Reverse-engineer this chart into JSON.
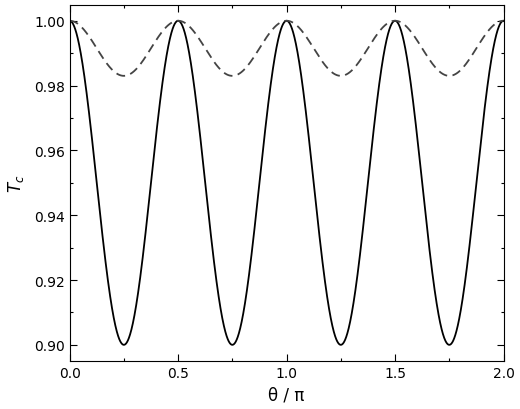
{
  "xlim": [
    0.0,
    2.0
  ],
  "ylim": [
    0.895,
    1.005
  ],
  "xlabel": "θ / π",
  "ylabel": "$T_c$",
  "xticks": [
    0.0,
    0.5,
    1.0,
    1.5,
    2.0
  ],
  "yticks": [
    0.9,
    0.92,
    0.94,
    0.96,
    0.98,
    1.0
  ],
  "solid_color": "#000000",
  "dashed_color": "#444444",
  "solid_linewidth": 1.3,
  "dashed_linewidth": 1.3,
  "solid_min": 0.9,
  "solid_max": 1.0,
  "dashed_min": 0.983,
  "dashed_max": 1.0,
  "n_points": 3000,
  "background_color": "#ffffff",
  "figsize": [
    5.2,
    4.1
  ],
  "dpi": 100
}
